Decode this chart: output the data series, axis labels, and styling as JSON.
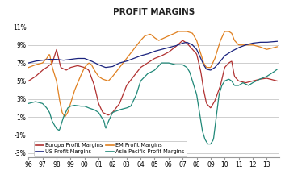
{
  "title": "PROFIT MARGINS",
  "ylim": [
    -3.5,
    12
  ],
  "yticks": [
    -3,
    -1,
    1,
    3,
    5,
    7,
    9,
    11
  ],
  "ytick_labels": [
    "-3%",
    "-1%",
    "1%",
    "3%",
    "5%",
    "7%",
    "9%",
    "11%"
  ],
  "xtick_labels": [
    "96",
    "97",
    "98",
    "99",
    "00",
    "01",
    "02",
    "03",
    "04",
    "05",
    "06",
    "07",
    "08",
    "09",
    "10",
    "11",
    "12",
    "13"
  ],
  "legend": [
    {
      "label": "Europa Profit Margins",
      "color": "#b03030"
    },
    {
      "label": "EM Profit Margins",
      "color": "#e08020"
    },
    {
      "label": "US Profit Margins",
      "color": "#1a237e"
    },
    {
      "label": "Asia Pacific Profit Margins",
      "color": "#208878"
    }
  ],
  "background_color": "#ffffff",
  "grid_color": "#bbbbbb"
}
